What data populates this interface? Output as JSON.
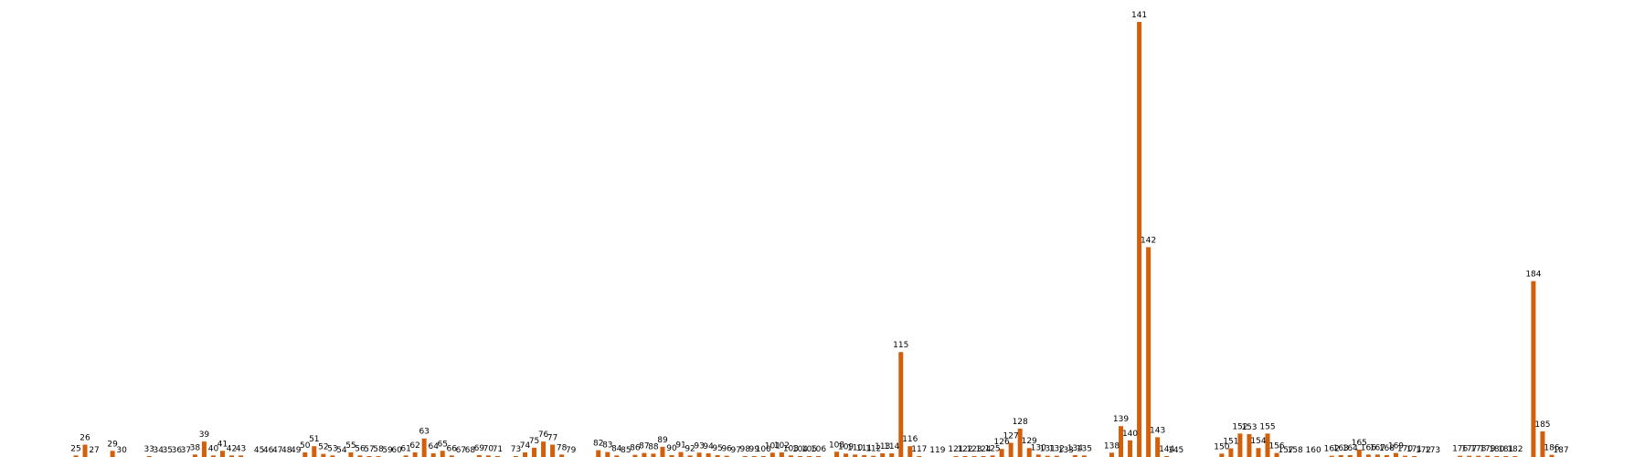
{
  "chart_data": {
    "type": "bar",
    "title": "",
    "xlabel": "",
    "ylabel": "",
    "bar_color": "#d35f0a",
    "x_range": [
      23,
      189
    ],
    "ylim": [
      0,
      141
    ],
    "grid": false,
    "axes_visible": false,
    "categories": [
      25,
      26,
      27,
      29,
      30,
      33,
      34,
      35,
      36,
      37,
      38,
      39,
      40,
      41,
      42,
      43,
      45,
      46,
      47,
      48,
      49,
      50,
      51,
      52,
      53,
      54,
      55,
      56,
      57,
      58,
      59,
      60,
      61,
      62,
      63,
      64,
      65,
      66,
      67,
      68,
      69,
      70,
      71,
      73,
      74,
      75,
      76,
      77,
      78,
      79,
      82,
      83,
      84,
      85,
      86,
      87,
      88,
      89,
      90,
      91,
      92,
      93,
      94,
      95,
      96,
      97,
      98,
      99,
      100,
      101,
      102,
      103,
      104,
      105,
      106,
      108,
      109,
      110,
      111,
      112,
      113,
      114,
      115,
      116,
      117,
      119,
      121,
      122,
      123,
      124,
      125,
      126,
      127,
      128,
      129,
      130,
      131,
      132,
      133,
      134,
      135,
      138,
      139,
      140,
      141,
      142,
      143,
      144,
      145,
      150,
      151,
      152,
      153,
      154,
      155,
      156,
      157,
      158,
      160,
      162,
      163,
      164,
      165,
      166,
      167,
      168,
      169,
      170,
      171,
      172,
      173,
      176,
      177,
      178,
      179,
      180,
      181,
      182,
      184,
      185,
      186,
      187
    ],
    "values": [
      0.5,
      4,
      0,
      2,
      0,
      0.3,
      0,
      0,
      0,
      0,
      0.8,
      5,
      0.5,
      2,
      0.5,
      0.5,
      0,
      0,
      0,
      0,
      0,
      1.5,
      3.5,
      1,
      0.5,
      0,
      1.5,
      0.5,
      0.3,
      0.3,
      0,
      0,
      0.5,
      1.5,
      6,
      1.2,
      2,
      0.5,
      0,
      0,
      0.6,
      0.5,
      0.3,
      0.3,
      1.5,
      3,
      5,
      4,
      0.8,
      0,
      2.2,
      1.6,
      0.5,
      0,
      0.7,
      1.3,
      1.1,
      3.3,
      0.6,
      1.6,
      0.5,
      1.4,
      1.2,
      0.6,
      0.4,
      0,
      0.3,
      0.3,
      0.3,
      1.4,
      1.5,
      0.5,
      0.3,
      0.3,
      0.3,
      1.7,
      1.1,
      0.8,
      0.6,
      0.4,
      1.2,
      1.2,
      34,
      3.5,
      0.3,
      0,
      0.3,
      0.3,
      0.3,
      0.3,
      0.5,
      2.6,
      4.6,
      9.2,
      2.9,
      0.8,
      0.4,
      0.4,
      0,
      0.6,
      0.5,
      1.4,
      10,
      5.4,
      141,
      68,
      6.4,
      0.3,
      0,
      1.1,
      2.8,
      7.6,
      7.4,
      2.9,
      7.6,
      1.3,
      0,
      0,
      0,
      0.4,
      0.6,
      0.6,
      2.4,
      0.8,
      0.8,
      0.6,
      1.3,
      0.4,
      0.3,
      0,
      0,
      0.4,
      0.4,
      0.4,
      0.4,
      0.3,
      0.3,
      0.3,
      57,
      8.3,
      0.7,
      0
    ]
  }
}
